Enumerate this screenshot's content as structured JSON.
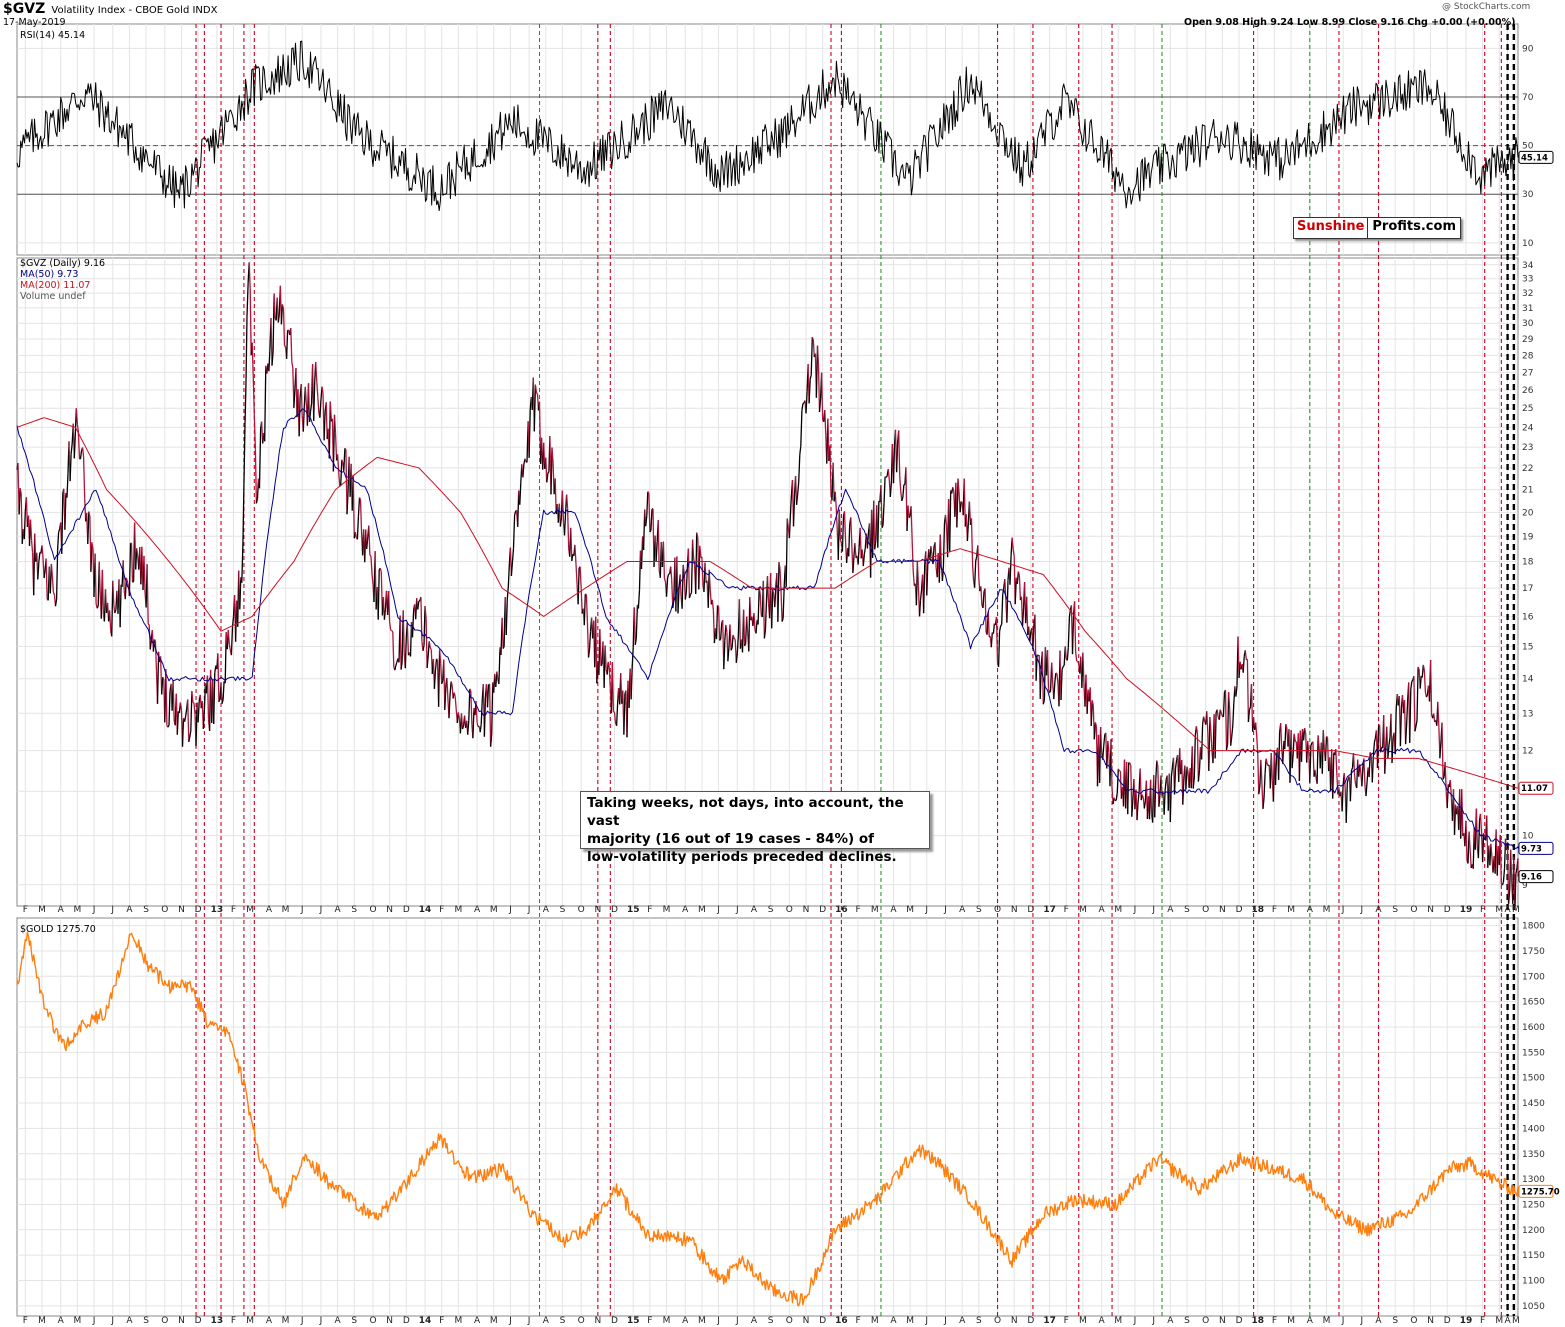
{
  "header": {
    "symbol": "$GVZ",
    "title": "Volatility Index - CBOE Gold INDX",
    "date": "17-May-2019",
    "source": "@ StockCharts.com",
    "ohlc": "Open 9.08  High 9.24  Low 8.99  Close 9.16  Chg +0.00 (+0.00%)"
  },
  "logo": {
    "part1": "Sunshine",
    "part2": "Profits.com"
  },
  "annotation": {
    "lines": [
      "Taking weeks, not days, into account, the vast",
      "majority (16 out of 19 cases - 84%) of",
      "low-volatility periods preceded declines."
    ]
  },
  "colors": {
    "rsi": "#000000",
    "gvz_up": "#000000",
    "gvz_down": "#b0143c",
    "ma50": "#00008b",
    "ma200": "#cc1122",
    "gold": "#ff7f0e",
    "red_marker": "#cc0022",
    "green_marker": "#1a8a1a",
    "black_marker": "#000000",
    "grid": "#e4e4e4"
  },
  "chart_data": [
    {
      "type": "line",
      "name": "rsi-panel",
      "legend": "RSI(14) 45.14",
      "current_value": "45.14",
      "ylim": [
        5,
        100
      ],
      "yticks": [
        10,
        30,
        50,
        70,
        90
      ],
      "guide_lines": [
        30,
        50,
        70
      ],
      "series": [
        {
          "name": "RSI(14)",
          "x": [
            2012.17,
            2012.5,
            2012.95,
            2013.3,
            2013.55,
            2013.8,
            2014.2,
            2014.55,
            2014.9,
            2015.3,
            2015.55,
            2015.85,
            2016.1,
            2016.45,
            2016.75,
            2017.0,
            2017.2,
            2017.5,
            2017.95,
            2018.25,
            2018.6,
            2018.95,
            2019.2,
            2019.38
          ],
          "values": [
            47,
            72,
            30,
            74,
            85,
            55,
            32,
            60,
            40,
            67,
            38,
            55,
            78,
            35,
            77,
            40,
            68,
            33,
            55,
            44,
            66,
            74,
            38,
            45.14
          ]
        }
      ]
    },
    {
      "type": "line",
      "name": "gvz-panel",
      "legend": [
        "$GVZ (Daily) 9.16",
        "MA(50) 9.73",
        "MA(200) 11.07",
        "Volume undef"
      ],
      "ylim": [
        8.6,
        34.5
      ],
      "scale": "log",
      "yticks": [
        9,
        10,
        11,
        12,
        13,
        14,
        15,
        16,
        17,
        18,
        19,
        20,
        21,
        22,
        23,
        24,
        25,
        26,
        27,
        28,
        29,
        30,
        31,
        32,
        33,
        34
      ],
      "current_labels": {
        "ma200": "11.07",
        "ma50": "9.73",
        "gvz": "9.16"
      },
      "series": [
        {
          "name": "$GVZ (Daily)",
          "x": [
            2012.17,
            2012.25,
            2012.35,
            2012.45,
            2012.55,
            2012.65,
            2012.75,
            2012.85,
            2012.95,
            2013.05,
            2013.15,
            2013.25,
            2013.28,
            2013.32,
            2013.4,
            2013.45,
            2013.52,
            2013.6,
            2013.7,
            2013.8,
            2013.9,
            2014.0,
            2014.1,
            2014.2,
            2014.3,
            2014.45,
            2014.55,
            2014.65,
            2014.8,
            2014.9,
            2015.0,
            2015.1,
            2015.2,
            2015.3,
            2015.45,
            2015.55,
            2015.7,
            2015.85,
            2016.0,
            2016.08,
            2016.12,
            2016.25,
            2016.4,
            2016.5,
            2016.6,
            2016.7,
            2016.8,
            2016.88,
            2016.95,
            2017.1,
            2017.2,
            2017.25,
            2017.35,
            2017.5,
            2017.7,
            2017.85,
            2018.0,
            2018.05,
            2018.15,
            2018.25,
            2018.35,
            2018.45,
            2018.55,
            2018.7,
            2018.85,
            2018.95,
            2019.05,
            2019.15,
            2019.25,
            2019.33,
            2019.38
          ],
          "values": [
            21,
            18,
            17,
            24,
            17,
            16,
            19,
            14,
            13,
            13,
            14,
            17,
            34,
            20,
            30,
            31,
            25,
            26,
            23,
            20,
            17,
            15,
            16,
            14,
            13,
            13,
            18,
            25,
            20,
            16,
            14,
            13,
            20,
            17,
            18,
            15,
            16,
            17,
            28,
            22,
            19,
            18,
            23,
            17,
            18,
            21,
            17,
            15,
            18,
            14,
            14,
            16,
            12,
            11,
            11,
            12,
            13,
            15,
            11,
            12,
            12,
            12,
            11,
            12,
            13,
            14,
            11,
            10,
            10,
            9.2,
            9.16
          ]
        },
        {
          "name": "MA(50)",
          "x": [
            2012.17,
            2012.35,
            2012.55,
            2012.7,
            2012.9,
            2013.05,
            2013.2,
            2013.3,
            2013.45,
            2013.55,
            2013.7,
            2013.85,
            2014.0,
            2014.2,
            2014.4,
            2014.55,
            2014.7,
            2014.85,
            2015.0,
            2015.2,
            2015.4,
            2015.6,
            2015.8,
            2016.0,
            2016.15,
            2016.3,
            2016.45,
            2016.6,
            2016.75,
            2016.9,
            2017.05,
            2017.2,
            2017.35,
            2017.5,
            2017.7,
            2017.9,
            2018.05,
            2018.2,
            2018.35,
            2018.5,
            2018.7,
            2018.9,
            2019.05,
            2019.2,
            2019.38
          ],
          "values": [
            24,
            18,
            21,
            17,
            14,
            14,
            14,
            14,
            24,
            25,
            22,
            21,
            16,
            15,
            13,
            13,
            20,
            20,
            16,
            14,
            18,
            17,
            17,
            17,
            21,
            18,
            18,
            18,
            15,
            17,
            15,
            12,
            12,
            11,
            11,
            11,
            12,
            12,
            11,
            11,
            12,
            12,
            11,
            10,
            9.73
          ]
        },
        {
          "name": "MA(200)",
          "x": [
            2012.17,
            2012.3,
            2012.45,
            2012.6,
            2012.8,
            2013.0,
            2013.15,
            2013.3,
            2013.5,
            2013.7,
            2013.9,
            2014.1,
            2014.3,
            2014.5,
            2014.7,
            2014.9,
            2015.1,
            2015.3,
            2015.5,
            2015.7,
            2015.9,
            2016.1,
            2016.3,
            2016.5,
            2016.7,
            2016.9,
            2017.1,
            2017.3,
            2017.5,
            2017.7,
            2017.9,
            2018.1,
            2018.3,
            2018.5,
            2018.7,
            2018.9,
            2019.1,
            2019.38
          ],
          "values": [
            24,
            24.5,
            24,
            21,
            19,
            17,
            15.5,
            16,
            18,
            21,
            22.5,
            22,
            20,
            17,
            16,
            17,
            18,
            18,
            18,
            17,
            17,
            17,
            18,
            18,
            18.5,
            18,
            17.5,
            15.5,
            14,
            13,
            12,
            12,
            12,
            12,
            11.8,
            11.8,
            11.5,
            11.07
          ]
        }
      ]
    },
    {
      "type": "line",
      "name": "gold-panel",
      "legend": "$GOLD 1275.70",
      "current_value": "1275.70",
      "ylim": [
        1030,
        1815
      ],
      "yticks": [
        1050,
        1100,
        1150,
        1200,
        1250,
        1300,
        1350,
        1400,
        1450,
        1500,
        1550,
        1600,
        1650,
        1700,
        1750,
        1800
      ],
      "series": [
        {
          "name": "$GOLD",
          "x": [
            2012.17,
            2012.22,
            2012.3,
            2012.4,
            2012.47,
            2012.6,
            2012.72,
            2012.8,
            2012.9,
            2013.0,
            2013.1,
            2013.2,
            2013.28,
            2013.33,
            2013.45,
            2013.55,
            2013.65,
            2013.8,
            2013.9,
            2014.05,
            2014.2,
            2014.35,
            2014.5,
            2014.65,
            2014.8,
            2014.9,
            2015.05,
            2015.2,
            2015.4,
            2015.55,
            2015.65,
            2015.8,
            2015.95,
            2016.1,
            2016.3,
            2016.5,
            2016.6,
            2016.75,
            2016.95,
            2017.1,
            2017.25,
            2017.45,
            2017.65,
            2017.85,
            2018.05,
            2018.2,
            2018.35,
            2018.5,
            2018.65,
            2018.85,
            2019.05,
            2019.15,
            2019.3,
            2019.38
          ],
          "values": [
            1680,
            1790,
            1640,
            1560,
            1600,
            1630,
            1790,
            1720,
            1680,
            1680,
            1600,
            1580,
            1450,
            1350,
            1250,
            1350,
            1300,
            1250,
            1220,
            1300,
            1380,
            1300,
            1320,
            1230,
            1180,
            1200,
            1280,
            1190,
            1180,
            1100,
            1140,
            1080,
            1060,
            1200,
            1260,
            1360,
            1330,
            1260,
            1140,
            1230,
            1260,
            1250,
            1340,
            1280,
            1340,
            1320,
            1300,
            1230,
            1200,
            1230,
            1320,
            1330,
            1290,
            1275.7
          ]
        }
      ]
    }
  ],
  "x_axis": {
    "labels": [
      {
        "x": 2012.21,
        "t": "F"
      },
      {
        "x": 2012.29,
        "t": "M"
      },
      {
        "x": 2012.38,
        "t": "A"
      },
      {
        "x": 2012.46,
        "t": "M"
      },
      {
        "x": 2012.54,
        "t": "J"
      },
      {
        "x": 2012.63,
        "t": "J"
      },
      {
        "x": 2012.71,
        "t": "A"
      },
      {
        "x": 2012.79,
        "t": "S"
      },
      {
        "x": 2012.88,
        "t": "O"
      },
      {
        "x": 2012.96,
        "t": "N"
      },
      {
        "x": 2013.04,
        "t": "D"
      },
      {
        "x": 2013.13,
        "t": "13",
        "b": true
      },
      {
        "x": 2013.21,
        "t": "F"
      },
      {
        "x": 2013.29,
        "t": "M"
      },
      {
        "x": 2013.38,
        "t": "A"
      },
      {
        "x": 2013.46,
        "t": "M"
      },
      {
        "x": 2013.54,
        "t": "J"
      },
      {
        "x": 2013.63,
        "t": "J"
      },
      {
        "x": 2013.71,
        "t": "A"
      },
      {
        "x": 2013.79,
        "t": "S"
      },
      {
        "x": 2013.88,
        "t": "O"
      },
      {
        "x": 2013.96,
        "t": "N"
      },
      {
        "x": 2014.04,
        "t": "D"
      },
      {
        "x": 2014.13,
        "t": "14",
        "b": true
      },
      {
        "x": 2014.21,
        "t": "F"
      },
      {
        "x": 2014.29,
        "t": "M"
      },
      {
        "x": 2014.38,
        "t": "A"
      },
      {
        "x": 2014.46,
        "t": "M"
      },
      {
        "x": 2014.54,
        "t": "J"
      },
      {
        "x": 2014.63,
        "t": "J"
      },
      {
        "x": 2014.71,
        "t": "A"
      },
      {
        "x": 2014.79,
        "t": "S"
      },
      {
        "x": 2014.88,
        "t": "O"
      },
      {
        "x": 2014.96,
        "t": "N"
      },
      {
        "x": 2015.04,
        "t": "D"
      },
      {
        "x": 2015.13,
        "t": "15",
        "b": true
      },
      {
        "x": 2015.21,
        "t": "F"
      },
      {
        "x": 2015.29,
        "t": "M"
      },
      {
        "x": 2015.38,
        "t": "A"
      },
      {
        "x": 2015.46,
        "t": "M"
      },
      {
        "x": 2015.54,
        "t": "J"
      },
      {
        "x": 2015.63,
        "t": "J"
      },
      {
        "x": 2015.71,
        "t": "A"
      },
      {
        "x": 2015.79,
        "t": "S"
      },
      {
        "x": 2015.88,
        "t": "O"
      },
      {
        "x": 2015.96,
        "t": "N"
      },
      {
        "x": 2016.04,
        "t": "D"
      },
      {
        "x": 2016.13,
        "t": "16",
        "b": true
      },
      {
        "x": 2016.21,
        "t": "F"
      },
      {
        "x": 2016.29,
        "t": "M"
      },
      {
        "x": 2016.38,
        "t": "A"
      },
      {
        "x": 2016.46,
        "t": "M"
      },
      {
        "x": 2016.54,
        "t": "J"
      },
      {
        "x": 2016.63,
        "t": "J"
      },
      {
        "x": 2016.71,
        "t": "A"
      },
      {
        "x": 2016.79,
        "t": "S"
      },
      {
        "x": 2016.88,
        "t": "O"
      },
      {
        "x": 2016.96,
        "t": "N"
      },
      {
        "x": 2017.04,
        "t": "D"
      },
      {
        "x": 2017.13,
        "t": "17",
        "b": true
      },
      {
        "x": 2017.21,
        "t": "F"
      },
      {
        "x": 2017.29,
        "t": "M"
      },
      {
        "x": 2017.38,
        "t": "A"
      },
      {
        "x": 2017.46,
        "t": "M"
      },
      {
        "x": 2017.54,
        "t": "J"
      },
      {
        "x": 2017.63,
        "t": "J"
      },
      {
        "x": 2017.71,
        "t": "A"
      },
      {
        "x": 2017.79,
        "t": "S"
      },
      {
        "x": 2017.88,
        "t": "O"
      },
      {
        "x": 2017.96,
        "t": "N"
      },
      {
        "x": 2018.04,
        "t": "D"
      },
      {
        "x": 2018.13,
        "t": "18",
        "b": true
      },
      {
        "x": 2018.21,
        "t": "F"
      },
      {
        "x": 2018.29,
        "t": "M"
      },
      {
        "x": 2018.38,
        "t": "A"
      },
      {
        "x": 2018.46,
        "t": "M"
      },
      {
        "x": 2018.54,
        "t": "J"
      },
      {
        "x": 2018.63,
        "t": "J"
      },
      {
        "x": 2018.71,
        "t": "A"
      },
      {
        "x": 2018.79,
        "t": "S"
      },
      {
        "x": 2018.88,
        "t": "O"
      },
      {
        "x": 2018.96,
        "t": "N"
      },
      {
        "x": 2019.04,
        "t": "D"
      },
      {
        "x": 2019.13,
        "t": "19",
        "b": true
      },
      {
        "x": 2019.21,
        "t": "F"
      },
      {
        "x": 2019.29,
        "t": "M"
      },
      {
        "x": 2019.33,
        "t": "A"
      },
      {
        "x": 2019.37,
        "t": "M"
      }
    ]
  },
  "markers": {
    "red": [
      2013.03,
      2013.07,
      2013.15,
      2013.26,
      2013.31,
      2014.96,
      2015.02,
      2016.08,
      2016.13,
      2016.88,
      2017.05,
      2017.27,
      2017.43,
      2018.11,
      2018.52,
      2018.71,
      2019.22,
      2019.3
    ],
    "green": [
      2014.68,
      2016.32,
      2017.67,
      2018.38
    ],
    "black": [
      2019.33,
      2019.36
    ]
  }
}
